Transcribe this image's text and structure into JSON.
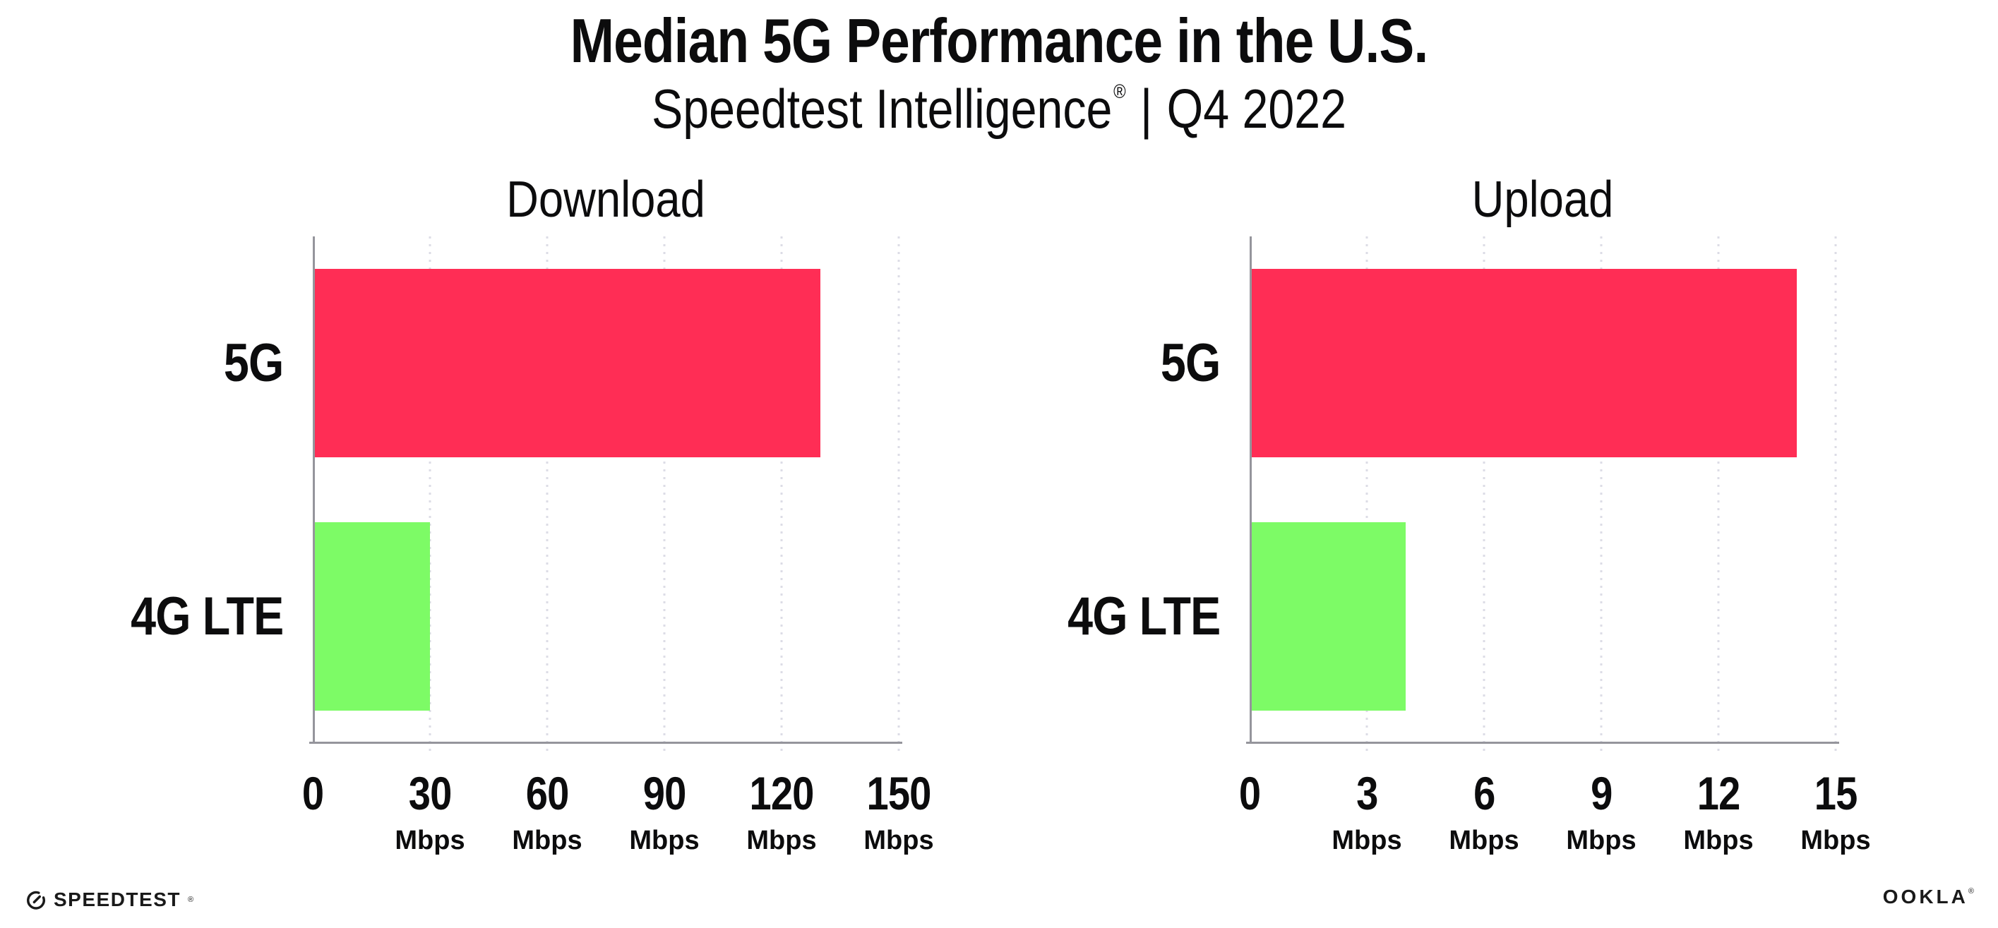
{
  "header": {
    "title": "Median 5G Performance in the U.S.",
    "subtitle_brand": "Speedtest Intelligence",
    "subtitle_registered": "®",
    "subtitle_separator": "|",
    "subtitle_period": "Q4 2022"
  },
  "chart_data": [
    {
      "type": "bar",
      "orientation": "horizontal",
      "title": "Download",
      "categories": [
        "5G",
        "4G LTE"
      ],
      "values": [
        130,
        30
      ],
      "value_unit": "Mbps",
      "xlim": [
        0,
        150
      ],
      "xticks": [
        0,
        30,
        60,
        90,
        120,
        150
      ],
      "xtick_unit_label": "Mbps",
      "unit_shown_on_zero_tick": false,
      "grid": "vertical-dotted",
      "legend": "none",
      "bar_colors": [
        "#ff2d55",
        "#7dfb66"
      ]
    },
    {
      "type": "bar",
      "orientation": "horizontal",
      "title": "Upload",
      "categories": [
        "5G",
        "4G LTE"
      ],
      "values": [
        14,
        4
      ],
      "value_unit": "Mbps",
      "xlim": [
        0,
        15
      ],
      "xticks": [
        0,
        3,
        6,
        9,
        12,
        15
      ],
      "xtick_unit_label": "Mbps",
      "unit_shown_on_zero_tick": false,
      "grid": "vertical-dotted",
      "legend": "none",
      "bar_colors": [
        "#ff2d55",
        "#7dfb66"
      ]
    }
  ],
  "footer": {
    "speedtest_label": "SPEEDTEST",
    "speedtest_mark": "®",
    "speedtest_icon": "gauge-icon",
    "ookla_label": "OOKLA",
    "ookla_mark": "®"
  },
  "colors": {
    "bar_5g": "#ff2d55",
    "bar_4g_lte": "#7dfb66",
    "axis": "#95959c",
    "gridline": "#dcdce6",
    "text": "#0c0c0d",
    "logo": "#1a1a1a"
  }
}
